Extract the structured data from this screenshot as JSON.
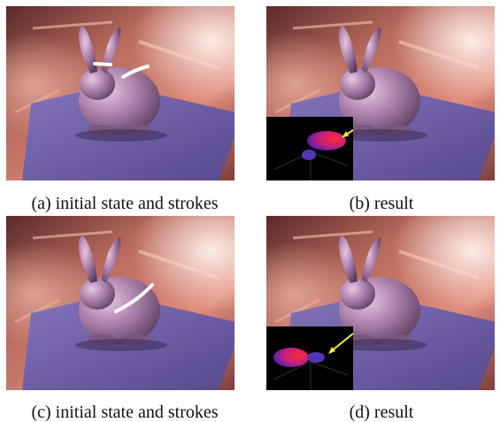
{
  "figure": {
    "panels": [
      {
        "id": "a",
        "caption": "(a) initial state and strokes",
        "strokes": "two short strokes on head and back",
        "inset": false
      },
      {
        "id": "b",
        "caption": "(b) result",
        "strokes": "none",
        "inset": true
      },
      {
        "id": "c",
        "caption": "(c) initial state and strokes",
        "strokes": "one long stroke on back",
        "inset": false
      },
      {
        "id": "d",
        "caption": "(d) result",
        "strokes": "none",
        "inset": true
      }
    ],
    "colors": {
      "plane": "#6f5ea6",
      "bunny": "#b88fb6",
      "background_warm": "#b86a5c",
      "stroke": "#ffffff",
      "arrow": "#f2e83a",
      "inset_bg": "#000000"
    }
  }
}
